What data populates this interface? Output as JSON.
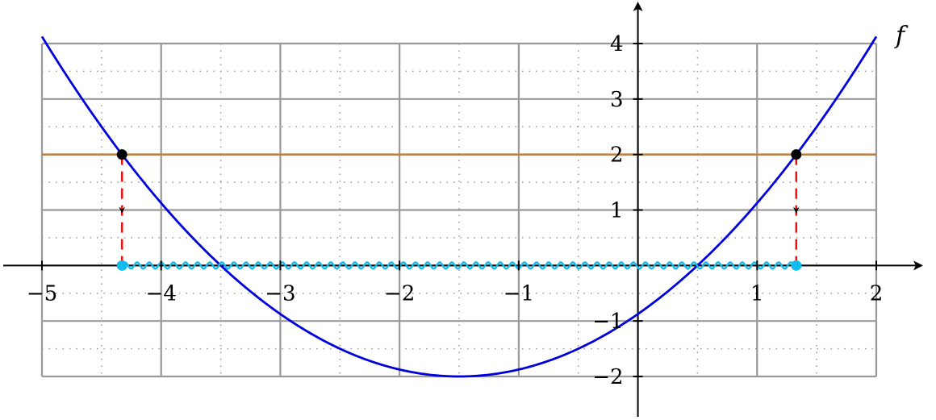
{
  "chart_data": {
    "type": "line",
    "function_label": "f",
    "xlim": [
      -5,
      2
    ],
    "ylim": [
      -2,
      4
    ],
    "grid": {
      "major": true,
      "minor": true,
      "major_step": 1,
      "minor_step": 0.5,
      "major_color": "#999999",
      "minor_color": "#999999"
    },
    "x_ticks": [
      {
        "value": -5,
        "label": "−5"
      },
      {
        "value": -4,
        "label": "−4"
      },
      {
        "value": -3,
        "label": "−3"
      },
      {
        "value": -2,
        "label": "−2"
      },
      {
        "value": -1,
        "label": "−1"
      },
      {
        "value": 1,
        "label": "1"
      },
      {
        "value": 2,
        "label": "2"
      }
    ],
    "y_ticks": [
      {
        "value": -2,
        "label": "−2"
      },
      {
        "value": -1,
        "label": "−1"
      },
      {
        "value": 1,
        "label": "1"
      },
      {
        "value": 2,
        "label": "2"
      },
      {
        "value": 3,
        "label": "3"
      },
      {
        "value": 4,
        "label": "4"
      }
    ],
    "series": [
      {
        "kind": "parabola",
        "vertex": [
          -1.5,
          -2
        ],
        "a": 0.5,
        "domain": [
          -5,
          2
        ],
        "color": "#0000dd"
      },
      {
        "kind": "horizontal_line",
        "y": 2,
        "domain": [
          -5,
          2
        ],
        "color": "#bf7f3f"
      }
    ],
    "intersection_points": [
      {
        "x": -4.3284,
        "y": 2
      },
      {
        "x": 1.3284,
        "y": 2
      }
    ],
    "projection_color": "#ee1111",
    "point_color": "#000000",
    "projected_points_color": "#11bbee",
    "solution_interval": [
      -4.3284,
      1.3284
    ]
  }
}
